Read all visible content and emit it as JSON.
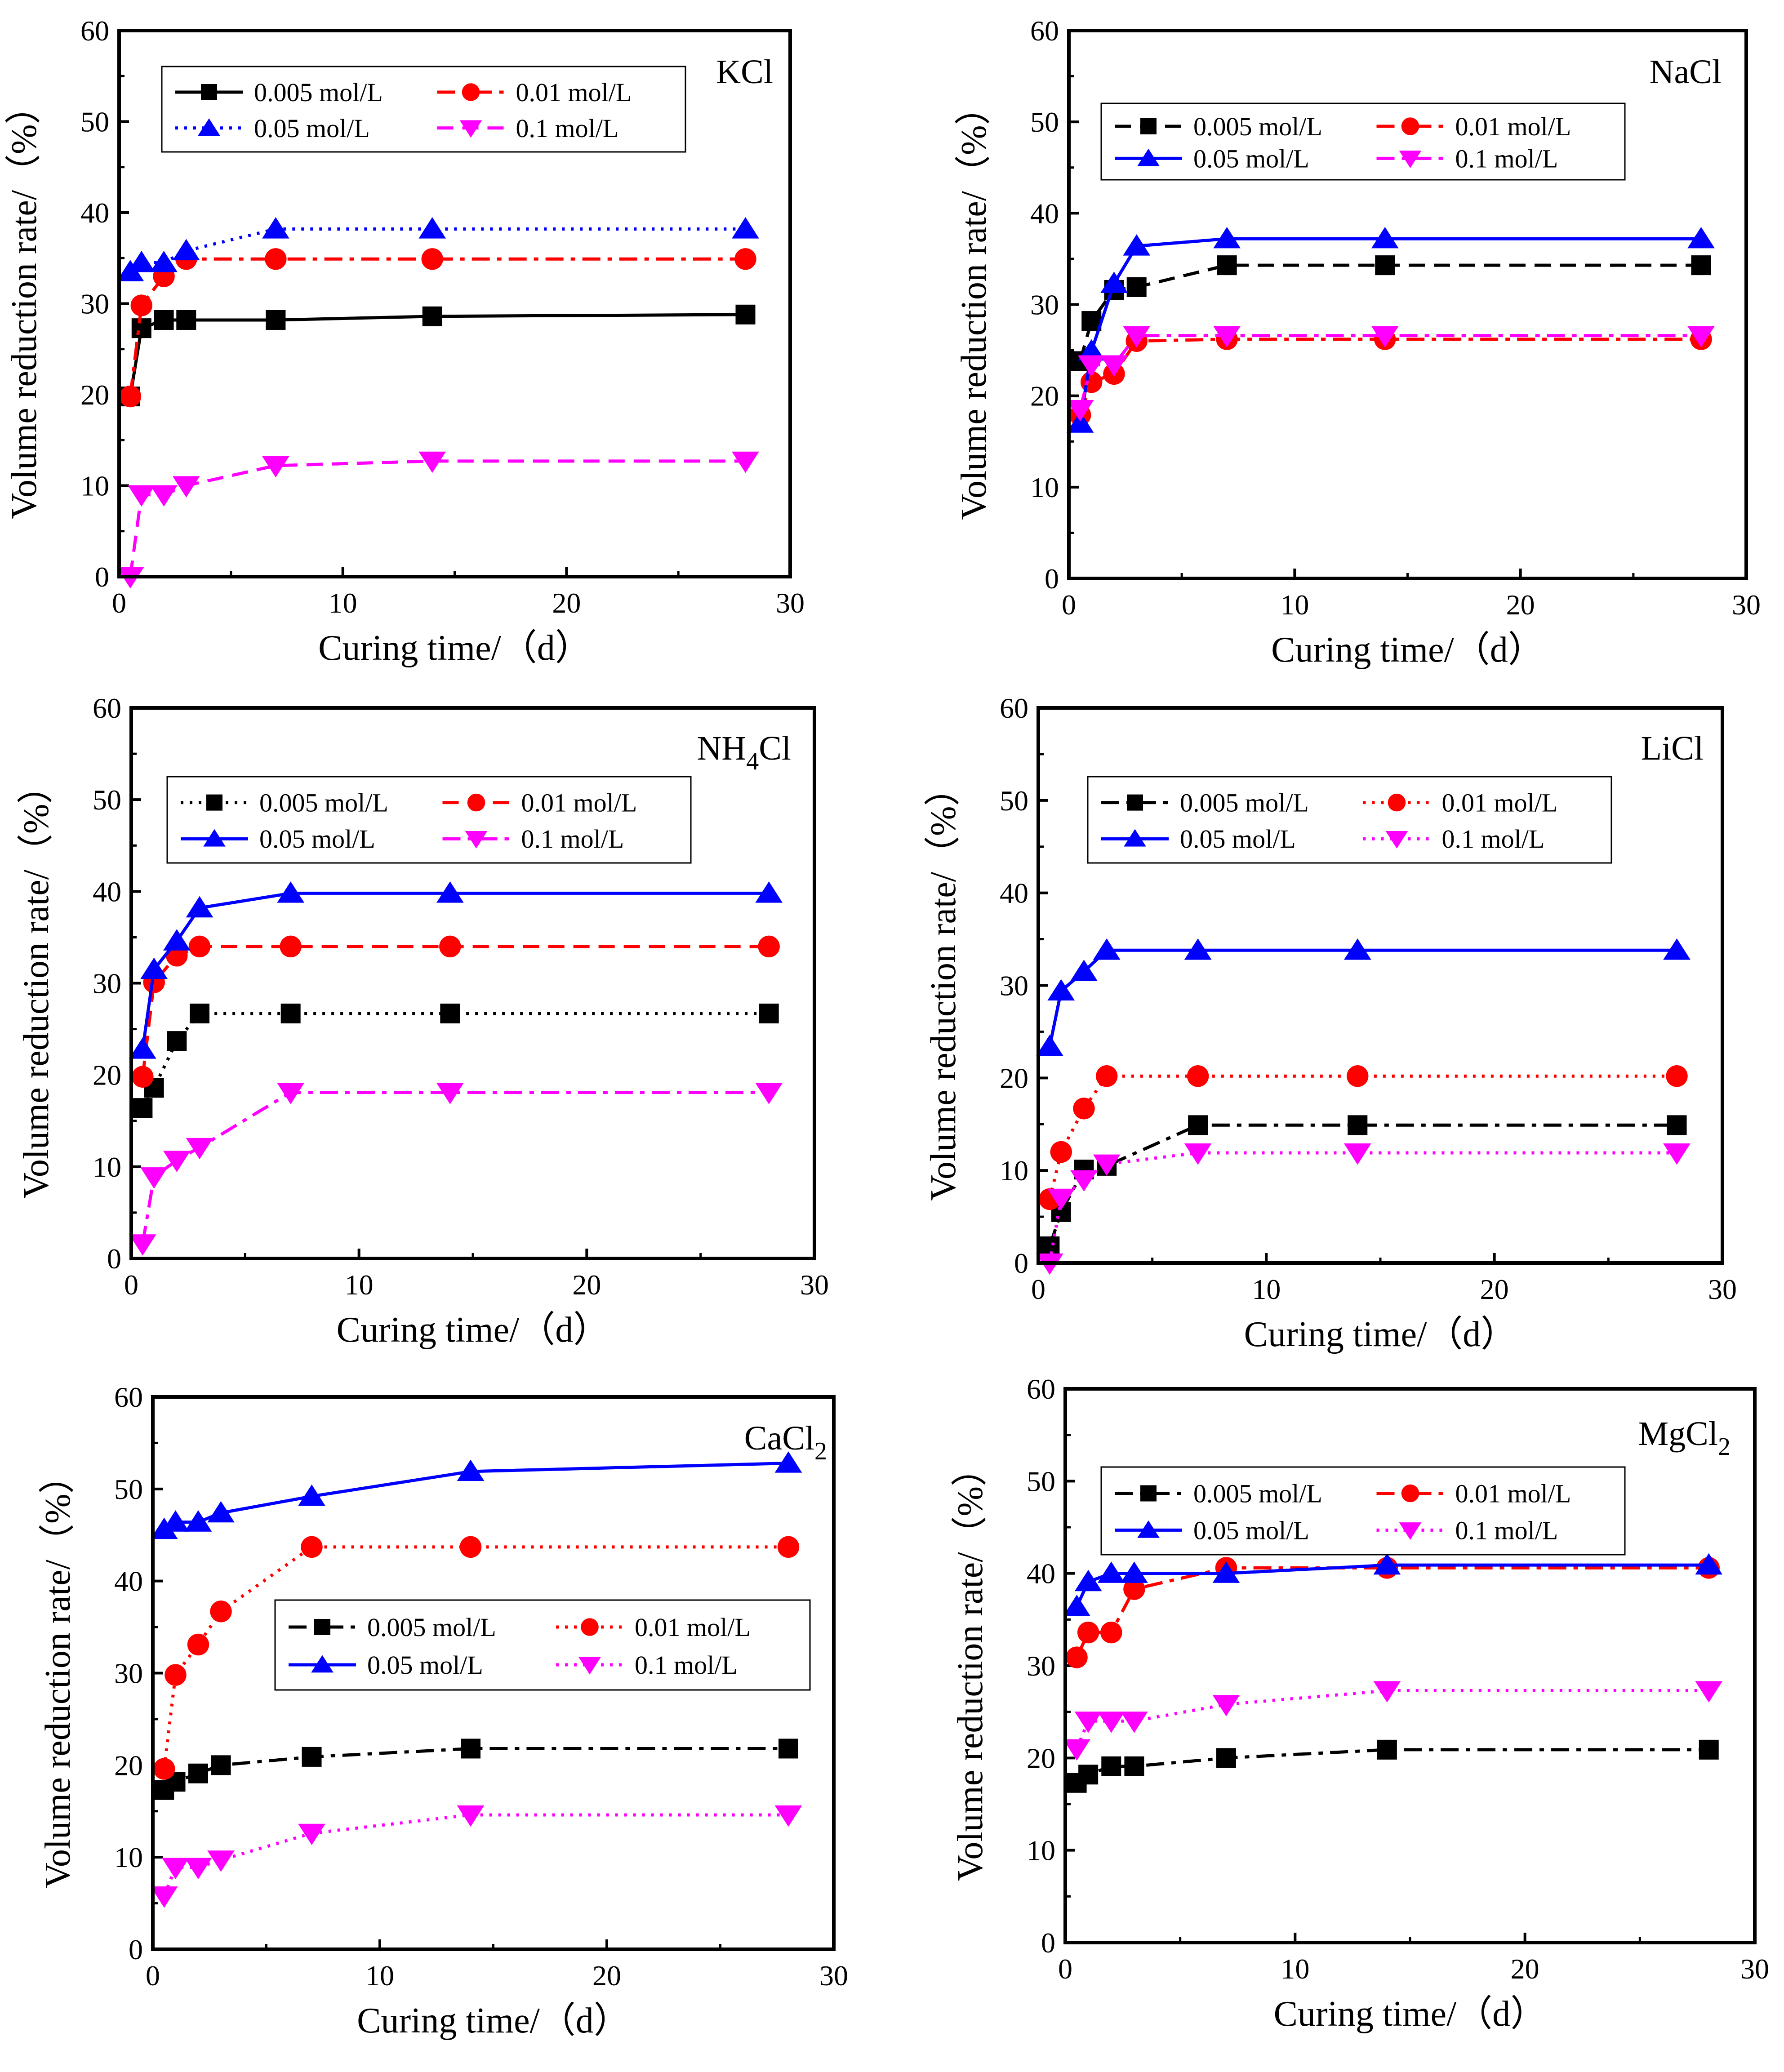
{
  "figure": {
    "description": "Six panels of volume reduction rate versus curing time for chloride salts"
  },
  "chart_data": [
    {
      "type": "line",
      "label": "KCl",
      "label_sub": "",
      "xlabel": "Curing time/（d）",
      "ylabel": "Volume reduction rate/（%）",
      "xlim": [
        0,
        30
      ],
      "ylim": [
        0,
        60
      ],
      "xticks": [
        0,
        10,
        20,
        30
      ],
      "yticks": [
        0,
        10,
        20,
        30,
        40,
        50,
        60
      ],
      "x": [
        0.5,
        1,
        2,
        3,
        7,
        14,
        28
      ],
      "series": [
        {
          "name": "0.005 mol/L",
          "color": "#000000",
          "marker": "square",
          "dash": "solid",
          "values": [
            19.8,
            27.3,
            28.2,
            28.2,
            28.2,
            28.6,
            28.8
          ]
        },
        {
          "name": "0.01 mol/L",
          "color": "#ff0000",
          "marker": "circle",
          "dash": "dashdot",
          "values": [
            19.8,
            29.8,
            33.0,
            34.9,
            34.9,
            34.9,
            34.9
          ]
        },
        {
          "name": "0.05 mol/L",
          "color": "#0000ff",
          "marker": "triangle",
          "dash": "dotted",
          "values": [
            33.5,
            34.5,
            34.5,
            35.8,
            38.2,
            38.2,
            38.2
          ]
        },
        {
          "name": "0.1 mol/L",
          "color": "#ff00ff",
          "marker": "triangle-down",
          "dash": "dashed",
          "values": [
            0.0,
            9.0,
            9.0,
            10.0,
            12.2,
            12.7,
            12.7
          ]
        }
      ]
    },
    {
      "type": "line",
      "label": "NaCl",
      "label_sub": "",
      "xlabel": "Curing time/（d）",
      "ylabel": "Volume reduction rate/（%）",
      "xlim": [
        0,
        30
      ],
      "ylim": [
        0,
        60
      ],
      "xticks": [
        0,
        10,
        20,
        30
      ],
      "yticks": [
        0,
        10,
        20,
        30,
        40,
        50,
        60
      ],
      "x": [
        0.5,
        1,
        2,
        3,
        7,
        14,
        28
      ],
      "series": [
        {
          "name": "0.005 mol/L",
          "color": "#000000",
          "marker": "square",
          "dash": "dashed",
          "values": [
            23.8,
            28.2,
            31.6,
            31.9,
            34.3,
            34.3,
            34.3
          ]
        },
        {
          "name": "0.01 mol/L",
          "color": "#ff0000",
          "marker": "circle",
          "dash": "dashdot",
          "values": [
            17.9,
            21.5,
            22.4,
            26.0,
            26.2,
            26.2,
            26.2
          ]
        },
        {
          "name": "0.05 mol/L",
          "color": "#0000ff",
          "marker": "triangle",
          "dash": "solid",
          "values": [
            17.0,
            24.9,
            32.3,
            36.4,
            37.2,
            37.2,
            37.2
          ]
        },
        {
          "name": "0.1 mol/L",
          "color": "#ff00ff",
          "marker": "triangle-down",
          "dash": "dashdot",
          "values": [
            18.5,
            23.4,
            23.4,
            26.6,
            26.6,
            26.6,
            26.6
          ]
        }
      ]
    },
    {
      "type": "line",
      "label": "NH",
      "label_sub": "4",
      "label_tail": "Cl",
      "xlabel": "Curing time/（d）",
      "ylabel": "Volume reduction rate/（%）",
      "xlim": [
        0,
        30
      ],
      "ylim": [
        0,
        60
      ],
      "xticks": [
        0,
        10,
        20,
        30
      ],
      "yticks": [
        0,
        10,
        20,
        30,
        40,
        50,
        60
      ],
      "x": [
        0.5,
        1,
        2,
        3,
        7,
        14,
        28
      ],
      "series": [
        {
          "name": "0.005 mol/L",
          "color": "#000000",
          "marker": "square",
          "dash": "dotted",
          "values": [
            16.4,
            18.6,
            23.7,
            26.7,
            26.7,
            26.7,
            26.7
          ]
        },
        {
          "name": "0.01 mol/L",
          "color": "#ff0000",
          "marker": "circle",
          "dash": "dashed",
          "values": [
            19.8,
            30.1,
            33.0,
            34.0,
            34.0,
            34.0,
            34.0
          ]
        },
        {
          "name": "0.05 mol/L",
          "color": "#0000ff",
          "marker": "triangle",
          "dash": "solid",
          "values": [
            22.8,
            31.5,
            34.6,
            38.2,
            39.8,
            39.8,
            39.8
          ]
        },
        {
          "name": "0.1 mol/L",
          "color": "#ff00ff",
          "marker": "triangle-down",
          "dash": "dashdot",
          "values": [
            1.6,
            8.9,
            10.7,
            12.1,
            18.1,
            18.1,
            18.1
          ]
        }
      ]
    },
    {
      "type": "line",
      "label": "LiCl",
      "label_sub": "",
      "xlabel": "Curing time/（d）",
      "ylabel": "Volume reduction rate/（%）",
      "xlim": [
        0,
        30
      ],
      "ylim": [
        0,
        60
      ],
      "xticks": [
        0,
        10,
        20,
        30
      ],
      "yticks": [
        0,
        10,
        20,
        30,
        40,
        50,
        60
      ],
      "x": [
        0.5,
        1,
        2,
        3,
        7,
        14,
        28
      ],
      "series": [
        {
          "name": "0.005 mol/L",
          "color": "#000000",
          "marker": "square",
          "dash": "dashdot",
          "values": [
            1.8,
            5.5,
            10.1,
            10.5,
            14.9,
            14.9,
            14.9
          ]
        },
        {
          "name": "0.01 mol/L",
          "color": "#ff0000",
          "marker": "circle",
          "dash": "dotted",
          "values": [
            6.9,
            12.0,
            16.7,
            20.2,
            20.2,
            20.2,
            20.2
          ]
        },
        {
          "name": "0.05 mol/L",
          "color": "#0000ff",
          "marker": "triangle",
          "dash": "solid",
          "values": [
            23.4,
            29.4,
            31.5,
            33.8,
            33.8,
            33.8,
            33.8
          ]
        },
        {
          "name": "0.1 mol/L",
          "color": "#ff00ff",
          "marker": "triangle-down",
          "dash": "dotted",
          "values": [
            0.0,
            7.0,
            9.0,
            10.7,
            11.9,
            11.9,
            11.9
          ]
        }
      ]
    },
    {
      "type": "line",
      "label": "CaCl",
      "label_sub": "2",
      "xlabel": "Curing time/（d）",
      "ylabel": "Volume reduction rate/（%）",
      "xlim": [
        0,
        30
      ],
      "ylim": [
        0,
        60
      ],
      "xticks": [
        0,
        10,
        20,
        30
      ],
      "yticks": [
        0,
        10,
        20,
        30,
        40,
        50,
        60
      ],
      "x": [
        0.5,
        1,
        2,
        3,
        7,
        14,
        28
      ],
      "series": [
        {
          "name": "0.005 mol/L",
          "color": "#000000",
          "marker": "square",
          "dash": "dashdot",
          "values": [
            17.3,
            18.2,
            19.1,
            20.0,
            20.9,
            21.8,
            21.8
          ]
        },
        {
          "name": "0.01 mol/L",
          "color": "#ff0000",
          "marker": "circle",
          "dash": "dotted",
          "values": [
            19.6,
            29.8,
            33.1,
            36.7,
            43.7,
            43.7,
            43.7
          ]
        },
        {
          "name": "0.05 mol/L",
          "color": "#0000ff",
          "marker": "triangle",
          "dash": "solid",
          "values": [
            45.6,
            46.4,
            46.4,
            47.4,
            49.2,
            51.9,
            52.8
          ]
        },
        {
          "name": "0.1 mol/L",
          "color": "#ff00ff",
          "marker": "triangle-down",
          "dash": "dotted",
          "values": [
            5.8,
            8.9,
            8.9,
            9.7,
            12.6,
            14.6,
            14.6
          ]
        }
      ]
    },
    {
      "type": "line",
      "label": "MgCl",
      "label_sub": "2",
      "xlabel": "Curing time/（d）",
      "ylabel": "Volume reduction rate/（%）",
      "xlim": [
        0,
        30
      ],
      "ylim": [
        0,
        60
      ],
      "xticks": [
        0,
        10,
        20,
        30
      ],
      "yticks": [
        0,
        10,
        20,
        30,
        40,
        50,
        60
      ],
      "x": [
        0.5,
        1,
        2,
        3,
        7,
        14,
        28
      ],
      "series": [
        {
          "name": "0.005 mol/L",
          "color": "#000000",
          "marker": "square",
          "dash": "dashdot",
          "values": [
            17.3,
            18.2,
            19.1,
            19.1,
            20.0,
            20.9,
            20.9
          ]
        },
        {
          "name": "0.01 mol/L",
          "color": "#ff0000",
          "marker": "circle",
          "dash": "dashdot",
          "values": [
            30.9,
            33.6,
            33.6,
            38.3,
            40.6,
            40.6,
            40.6
          ]
        },
        {
          "name": "0.05 mol/L",
          "color": "#0000ff",
          "marker": "triangle",
          "dash": "solid",
          "values": [
            36.4,
            39.1,
            40.0,
            40.0,
            40.0,
            40.9,
            40.9
          ]
        },
        {
          "name": "0.1 mol/L",
          "color": "#ff00ff",
          "marker": "triangle-down",
          "dash": "dotted",
          "values": [
            21.0,
            24.0,
            24.0,
            24.0,
            25.8,
            27.3,
            27.3
          ]
        }
      ]
    }
  ]
}
